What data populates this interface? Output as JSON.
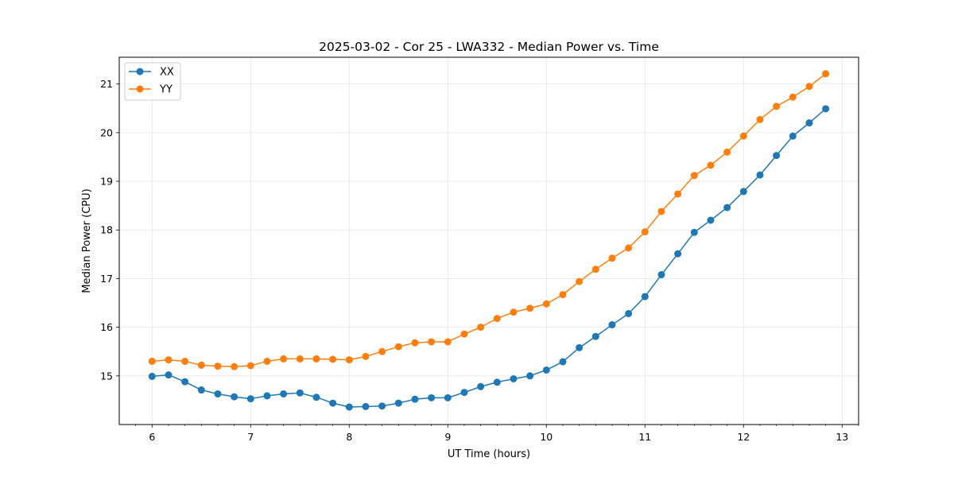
{
  "chart_data": {
    "type": "line",
    "title": "2025-03-02 - Cor 25 - LWA332 - Median Power vs. Time",
    "xlabel": "UT Time (hours)",
    "ylabel": "Median Power (CPU)",
    "xlim": [
      5.667,
      13.167
    ],
    "ylim": [
      14.0,
      21.55
    ],
    "xticks": [
      6,
      7,
      8,
      9,
      10,
      11,
      12,
      13
    ],
    "xtick_labels": [
      "6",
      "7",
      "8",
      "9",
      "10",
      "11",
      "12",
      "13"
    ],
    "yticks": [
      15,
      16,
      17,
      18,
      19,
      20,
      21
    ],
    "ytick_labels": [
      "15",
      "16",
      "17",
      "18",
      "19",
      "20",
      "21"
    ],
    "grid": true,
    "legend_position": "top-left",
    "x": [
      6.0,
      6.1667,
      6.3333,
      6.5,
      6.6667,
      6.8333,
      7.0,
      7.1667,
      7.3333,
      7.5,
      7.6667,
      7.8333,
      8.0,
      8.1667,
      8.3333,
      8.5,
      8.6667,
      8.8333,
      9.0,
      9.1667,
      9.3333,
      9.5,
      9.6667,
      9.8333,
      10.0,
      10.1667,
      10.3333,
      10.5,
      10.6667,
      10.8333,
      11.0,
      11.1667,
      11.3333,
      11.5,
      11.6667,
      11.8333,
      12.0,
      12.1667,
      12.3333,
      12.5,
      12.6667,
      12.8333
    ],
    "series": [
      {
        "name": "XX",
        "color": "#1f77b4",
        "values": [
          14.99,
          15.02,
          14.88,
          14.71,
          14.63,
          14.57,
          14.53,
          14.59,
          14.63,
          14.65,
          14.56,
          14.44,
          14.36,
          14.37,
          14.38,
          14.44,
          14.52,
          14.55,
          14.55,
          14.66,
          14.78,
          14.87,
          14.94,
          15.0,
          15.12,
          15.29,
          15.58,
          15.81,
          16.05,
          16.28,
          16.63,
          17.08,
          17.51,
          17.95,
          18.2,
          18.46,
          18.79,
          19.13,
          19.53,
          19.93,
          20.2,
          20.49
        ]
      },
      {
        "name": "YY",
        "color": "#ff7f0e",
        "values": [
          15.3,
          15.33,
          15.3,
          15.22,
          15.2,
          15.19,
          15.21,
          15.3,
          15.35,
          15.35,
          15.35,
          15.34,
          15.33,
          15.4,
          15.5,
          15.6,
          15.68,
          15.7,
          15.7,
          15.86,
          16.0,
          16.18,
          16.31,
          16.39,
          16.48,
          16.67,
          16.94,
          17.19,
          17.42,
          17.63,
          17.96,
          18.38,
          18.74,
          19.12,
          19.33,
          19.6,
          19.93,
          20.27,
          20.54,
          20.73,
          20.95,
          21.21
        ]
      }
    ]
  }
}
